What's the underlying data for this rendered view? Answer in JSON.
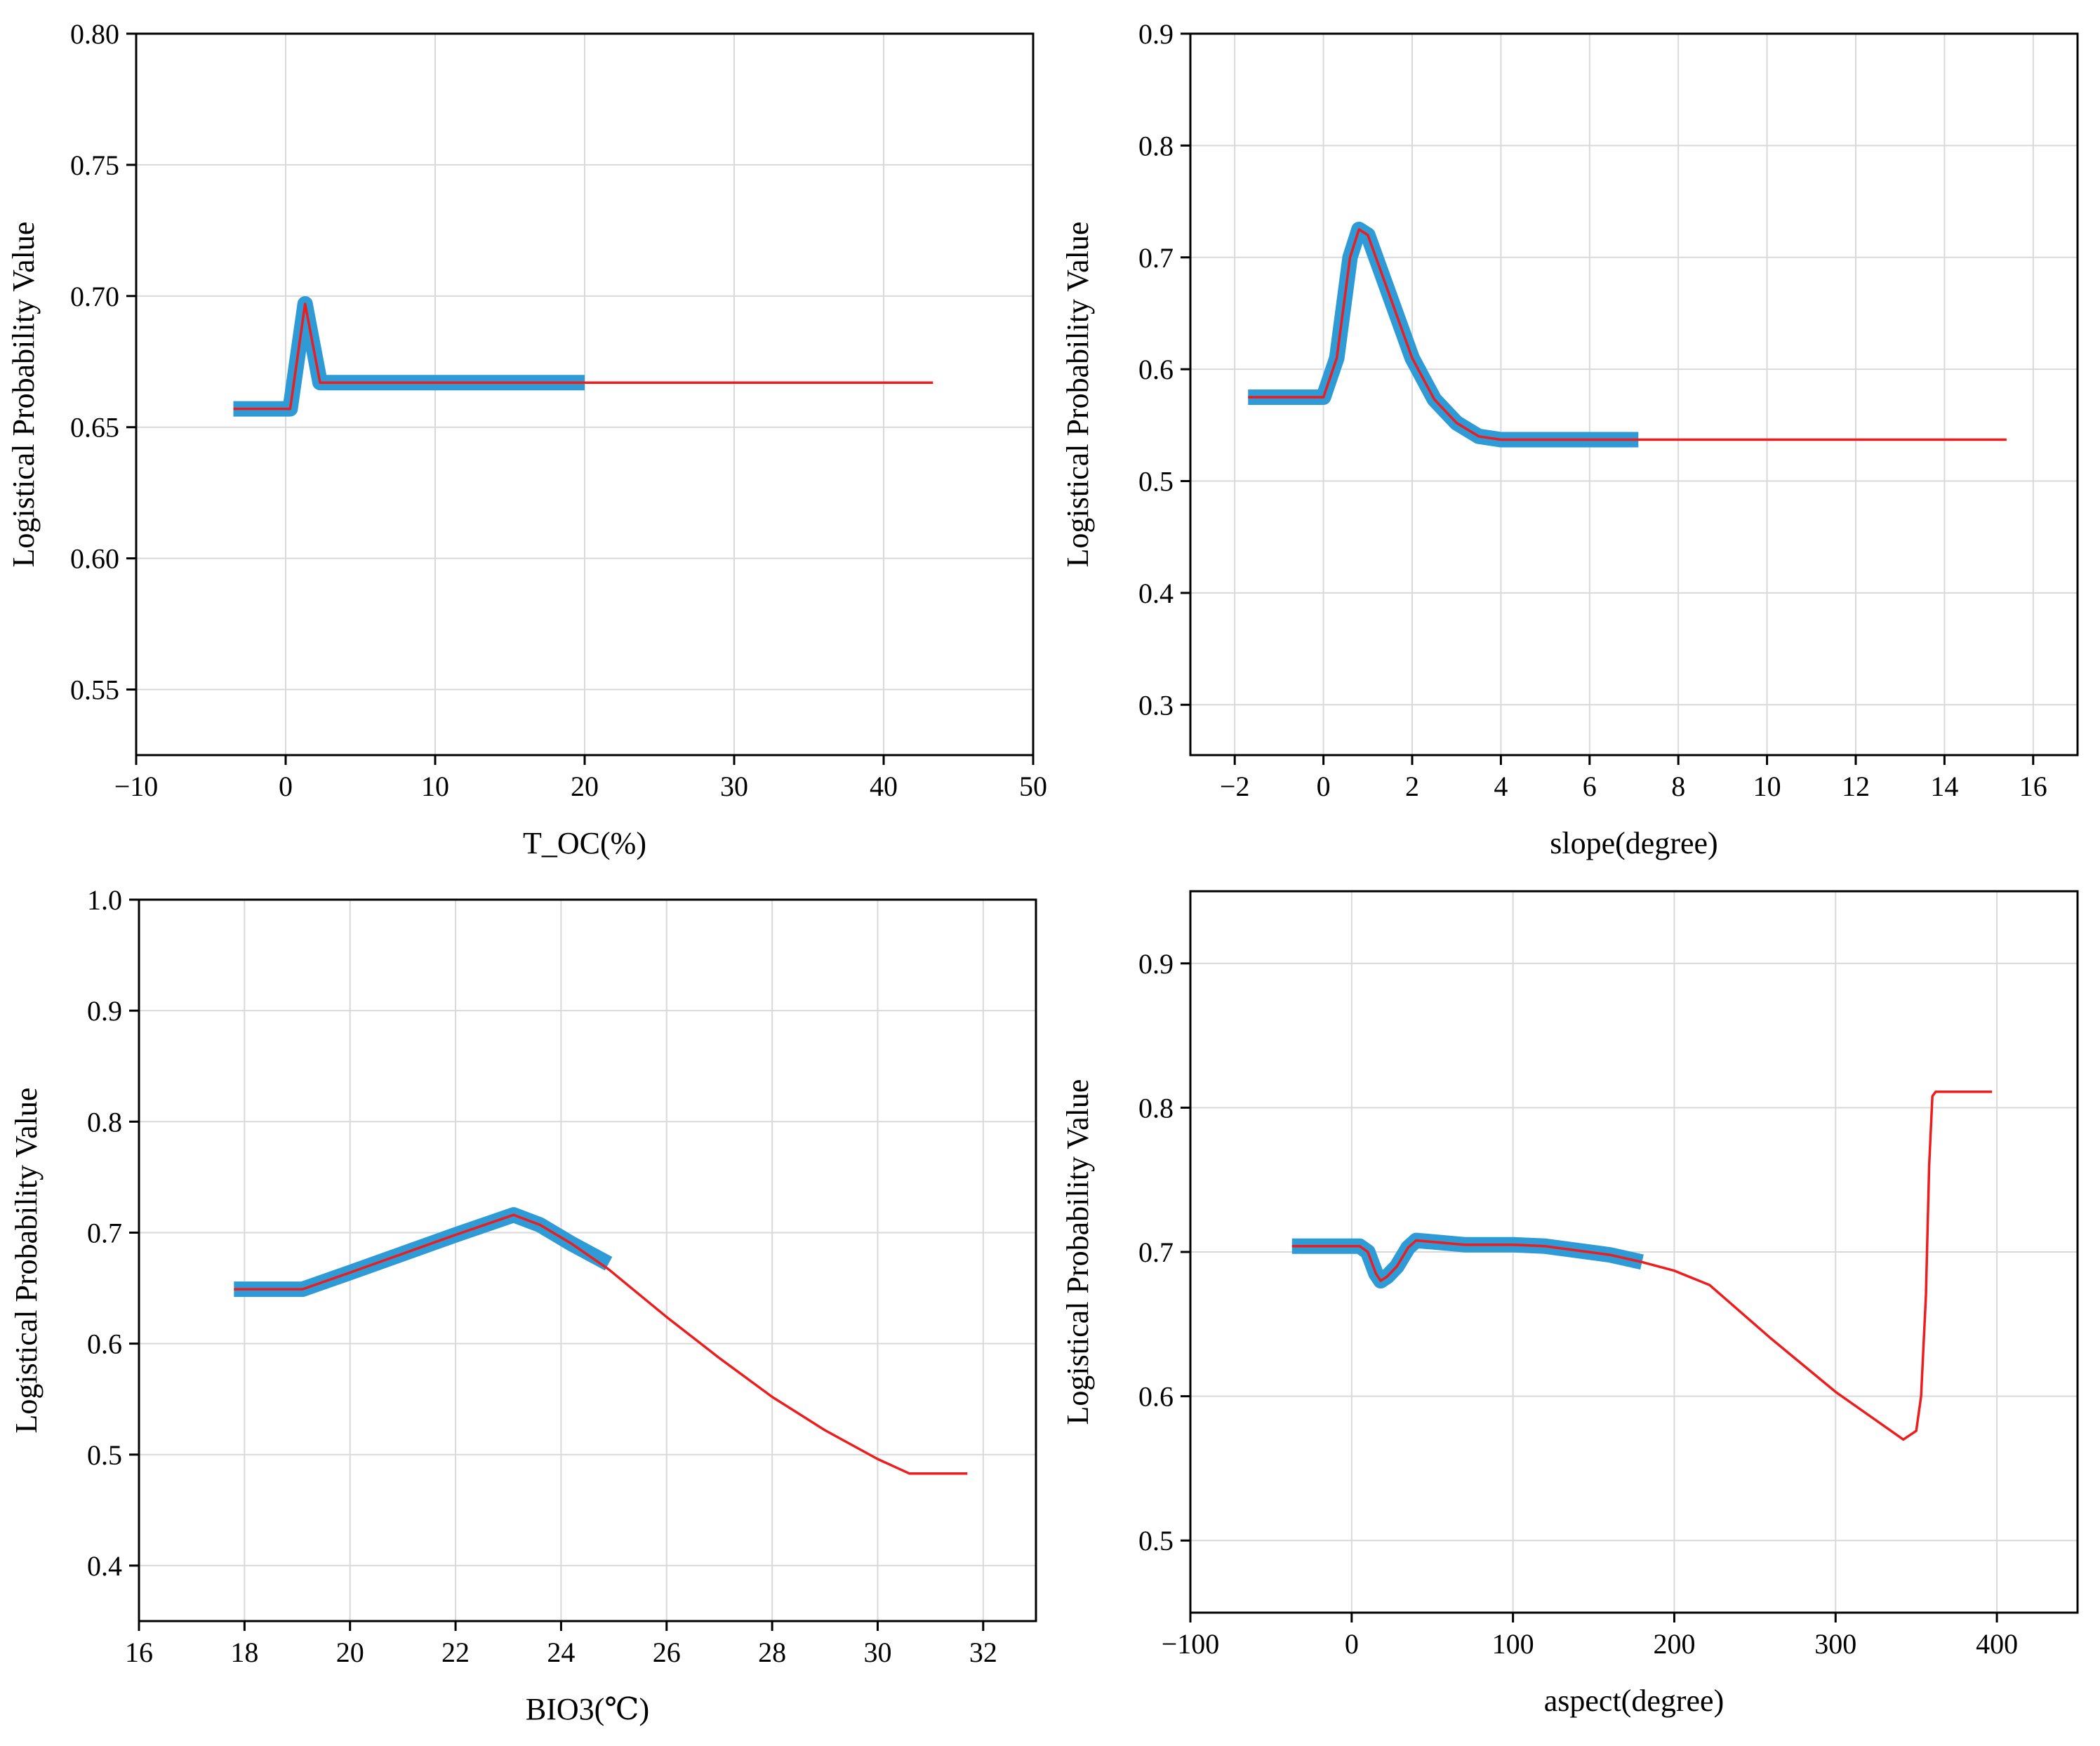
{
  "chart_data": [
    {
      "id": "toc",
      "type": "line",
      "xlabel": "T_OC(%)",
      "ylabel": "Logistical Probability Value",
      "xlim": [
        -10,
        50
      ],
      "ylim": [
        0.525,
        0.8
      ],
      "xticks": [
        -10,
        0,
        10,
        20,
        30,
        40,
        50
      ],
      "xtick_labels": [
        "−10",
        "0",
        "10",
        "20",
        "30",
        "40",
        "50"
      ],
      "yticks": [
        0.55,
        0.6,
        0.65,
        0.7,
        0.75,
        0.8
      ],
      "ytick_labels": [
        "0.55",
        "0.60",
        "0.65",
        "0.70",
        "0.75",
        "0.80"
      ],
      "grid": true,
      "colors": {
        "band": "#2e9ad6",
        "mean": "#ee1c1c"
      },
      "series": [
        {
          "name": "mean",
          "x": [
            -3.5,
            0.3,
            1.3,
            2.3,
            43.3
          ],
          "y": [
            0.657,
            0.657,
            0.697,
            0.667,
            0.667
          ]
        },
        {
          "name": "band",
          "x": [
            -3.5,
            0.3,
            1.3,
            2.3,
            20
          ],
          "y": [
            0.657,
            0.657,
            0.697,
            0.667,
            0.667
          ]
        }
      ]
    },
    {
      "id": "slope",
      "type": "line",
      "xlabel": "slope(degree)",
      "ylabel": "Logistical Probability Value",
      "xlim": [
        -3,
        17
      ],
      "ylim": [
        0.255,
        0.9
      ],
      "xticks": [
        -2,
        0,
        2,
        4,
        6,
        8,
        10,
        12,
        14,
        16
      ],
      "xtick_labels": [
        "−2",
        "0",
        "2",
        "4",
        "6",
        "8",
        "10",
        "12",
        "14",
        "16"
      ],
      "yticks": [
        0.3,
        0.4,
        0.5,
        0.6,
        0.7,
        0.8,
        0.9
      ],
      "ytick_labels": [
        "0.3",
        "0.4",
        "0.5",
        "0.6",
        "0.7",
        "0.8",
        "0.9"
      ],
      "grid": true,
      "colors": {
        "band": "#2e9ad6",
        "mean": "#ee1c1c"
      },
      "series": [
        {
          "name": "mean",
          "x": [
            -1.7,
            0,
            0.3,
            0.6,
            0.8,
            1.0,
            1.5,
            2.0,
            2.5,
            3.0,
            3.5,
            4.0,
            7.1,
            15.4
          ],
          "y": [
            0.575,
            0.575,
            0.61,
            0.7,
            0.725,
            0.72,
            0.665,
            0.61,
            0.573,
            0.552,
            0.54,
            0.537,
            0.537,
            0.537
          ]
        },
        {
          "name": "band",
          "x": [
            -1.7,
            0,
            0.3,
            0.6,
            0.8,
            1.0,
            1.5,
            2.0,
            2.5,
            3.0,
            3.5,
            4.0,
            7.1
          ],
          "y": [
            0.575,
            0.575,
            0.61,
            0.7,
            0.725,
            0.72,
            0.665,
            0.61,
            0.573,
            0.552,
            0.54,
            0.537,
            0.537
          ]
        }
      ]
    },
    {
      "id": "bio3",
      "type": "line",
      "xlabel": "BIO3(℃)",
      "ylabel": "Logistical Probability Value",
      "xlim": [
        16,
        33
      ],
      "ylim": [
        0.35,
        1.0
      ],
      "xticks": [
        16,
        18,
        20,
        22,
        24,
        26,
        28,
        30,
        32
      ],
      "xtick_labels": [
        "16",
        "18",
        "20",
        "22",
        "24",
        "26",
        "28",
        "30",
        "32"
      ],
      "yticks": [
        0.4,
        0.5,
        0.6,
        0.7,
        0.8,
        0.9,
        1.0
      ],
      "ytick_labels": [
        "0.4",
        "0.5",
        "0.6",
        "0.7",
        "0.8",
        "0.9",
        "1.0"
      ],
      "grid": true,
      "colors": {
        "band": "#2e9ad6",
        "mean": "#ee1c1c"
      },
      "series": [
        {
          "name": "mean",
          "x": [
            17.8,
            19.1,
            20,
            21,
            22,
            23.1,
            23.6,
            24.2,
            24.9,
            26,
            27,
            28,
            29,
            30,
            30.6,
            31.7
          ],
          "y": [
            0.649,
            0.649,
            0.664,
            0.681,
            0.698,
            0.716,
            0.707,
            0.69,
            0.667,
            0.624,
            0.587,
            0.552,
            0.522,
            0.496,
            0.483,
            0.483
          ]
        },
        {
          "name": "band",
          "x": [
            17.8,
            19.1,
            20,
            21,
            22,
            23.1,
            23.6,
            24.2,
            24.9
          ],
          "y": [
            0.649,
            0.649,
            0.664,
            0.681,
            0.698,
            0.716,
            0.707,
            0.69,
            0.672
          ]
        }
      ]
    },
    {
      "id": "aspect",
      "type": "line",
      "xlabel": "aspect(degree)",
      "ylabel": "Logistical Probability Value",
      "xlim": [
        -100,
        450
      ],
      "ylim": [
        0.45,
        0.95
      ],
      "xticks": [
        -100,
        0,
        100,
        200,
        300,
        400
      ],
      "xtick_labels": [
        "−100",
        "0",
        "100",
        "200",
        "300",
        "400"
      ],
      "yticks": [
        0.5,
        0.6,
        0.7,
        0.8,
        0.9
      ],
      "ytick_labels": [
        "0.5",
        "0.6",
        "0.7",
        "0.8",
        "0.9"
      ],
      "grid": true,
      "colors": {
        "band": "#2e9ad6",
        "mean": "#ee1c1c"
      },
      "series": [
        {
          "name": "mean",
          "x": [
            -37,
            5,
            10,
            15,
            18,
            22,
            28,
            35,
            40,
            50,
            70,
            100,
            120,
            160,
            180,
            200,
            222,
            260,
            300,
            342,
            350,
            353,
            356,
            358,
            360,
            362,
            397
          ],
          "y": [
            0.704,
            0.704,
            0.7,
            0.685,
            0.68,
            0.683,
            0.69,
            0.703,
            0.708,
            0.707,
            0.705,
            0.705,
            0.704,
            0.698,
            0.693,
            0.687,
            0.677,
            0.64,
            0.603,
            0.57,
            0.576,
            0.6,
            0.67,
            0.76,
            0.808,
            0.811,
            0.811
          ]
        },
        {
          "name": "band",
          "x": [
            -37,
            5,
            10,
            15,
            18,
            22,
            28,
            35,
            40,
            50,
            70,
            100,
            120,
            160,
            180
          ],
          "y": [
            0.704,
            0.704,
            0.7,
            0.685,
            0.68,
            0.683,
            0.69,
            0.703,
            0.708,
            0.707,
            0.705,
            0.705,
            0.704,
            0.698,
            0.693
          ]
        }
      ]
    }
  ]
}
